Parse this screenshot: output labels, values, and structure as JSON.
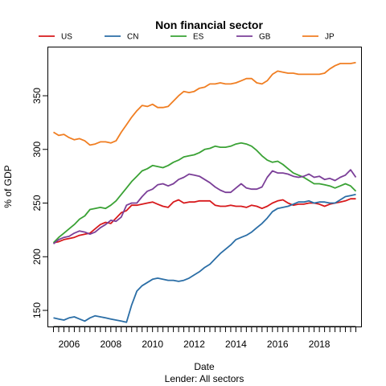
{
  "chart_data": {
    "type": "line",
    "title": "Non financial sector",
    "xlabel": "Date",
    "ylabel": "% of GDP",
    "caption": "Lender: All sectors",
    "xlim": [
      2005.0,
      2020.0
    ],
    "ylim": [
      135,
      395
    ],
    "y_ticks": [
      150,
      200,
      250,
      300,
      350
    ],
    "x_tick_labels": [
      "2006",
      "2008",
      "2010",
      "2012",
      "2014",
      "2016",
      "2018"
    ],
    "x_label_years": [
      2006,
      2008,
      2010,
      2012,
      2014,
      2016,
      2018
    ],
    "legend_position": "top",
    "series": [
      {
        "name": "US",
        "color": "#d7191c",
        "x": [
          2005.25,
          2005.5,
          2005.75,
          2006.0,
          2006.25,
          2006.5,
          2006.75,
          2007.0,
          2007.25,
          2007.5,
          2007.75,
          2008.0,
          2008.25,
          2008.5,
          2008.75,
          2009.0,
          2009.25,
          2009.5,
          2009.75,
          2010.0,
          2010.25,
          2010.5,
          2010.75,
          2011.0,
          2011.25,
          2011.5,
          2011.75,
          2012.0,
          2012.25,
          2012.5,
          2012.75,
          2013.0,
          2013.25,
          2013.5,
          2013.75,
          2014.0,
          2014.25,
          2014.5,
          2014.75,
          2015.0,
          2015.25,
          2015.5,
          2015.75,
          2016.0,
          2016.25,
          2016.5,
          2016.75,
          2017.0,
          2017.25,
          2017.5,
          2017.75,
          2018.0,
          2018.25,
          2018.5,
          2018.75,
          2019.0,
          2019.25,
          2019.5,
          2019.75
        ],
        "values": [
          213,
          214,
          216,
          217,
          218,
          220,
          221,
          222,
          226,
          230,
          232,
          231,
          236,
          241,
          243,
          248,
          248,
          249,
          250,
          251,
          249,
          247,
          246,
          251,
          253,
          250,
          251,
          251,
          252,
          252,
          252,
          248,
          247,
          247,
          248,
          247,
          247,
          246,
          248,
          247,
          245,
          247,
          250,
          252,
          253,
          250,
          248,
          249,
          249,
          250,
          250,
          249,
          247,
          249,
          250,
          251,
          252,
          254,
          254
        ]
      },
      {
        "name": "CN",
        "color": "#2b6ea6",
        "x": [
          2005.25,
          2005.5,
          2005.75,
          2006.0,
          2006.25,
          2006.5,
          2006.75,
          2007.0,
          2007.25,
          2007.5,
          2007.75,
          2008.0,
          2008.25,
          2008.5,
          2008.75,
          2009.0,
          2009.25,
          2009.5,
          2009.75,
          2010.0,
          2010.25,
          2010.5,
          2010.75,
          2011.0,
          2011.25,
          2011.5,
          2011.75,
          2012.0,
          2012.25,
          2012.5,
          2012.75,
          2013.0,
          2013.25,
          2013.5,
          2013.75,
          2014.0,
          2014.25,
          2014.5,
          2014.75,
          2015.0,
          2015.25,
          2015.5,
          2015.75,
          2016.0,
          2016.25,
          2016.5,
          2016.75,
          2017.0,
          2017.25,
          2017.5,
          2017.75,
          2018.0,
          2018.25,
          2018.5,
          2018.75,
          2019.0,
          2019.25,
          2019.5,
          2019.75
        ],
        "values": [
          143,
          142,
          141,
          143,
          144,
          142,
          140,
          143,
          145,
          144,
          143,
          142,
          141,
          140,
          139,
          155,
          168,
          173,
          176,
          179,
          180,
          179,
          178,
          178,
          177,
          178,
          180,
          183,
          186,
          190,
          193,
          198,
          203,
          207,
          211,
          216,
          218,
          220,
          223,
          227,
          231,
          236,
          242,
          245,
          246,
          247,
          249,
          251,
          251,
          252,
          250,
          251,
          251,
          250,
          250,
          253,
          256,
          257,
          258
        ]
      },
      {
        "name": "ES",
        "color": "#3aa235",
        "x": [
          2005.25,
          2005.5,
          2005.75,
          2006.0,
          2006.25,
          2006.5,
          2006.75,
          2007.0,
          2007.25,
          2007.5,
          2007.75,
          2008.0,
          2008.25,
          2008.5,
          2008.75,
          2009.0,
          2009.25,
          2009.5,
          2009.75,
          2010.0,
          2010.25,
          2010.5,
          2010.75,
          2011.0,
          2011.25,
          2011.5,
          2011.75,
          2012.0,
          2012.25,
          2012.5,
          2012.75,
          2013.0,
          2013.25,
          2013.5,
          2013.75,
          2014.0,
          2014.25,
          2014.5,
          2014.75,
          2015.0,
          2015.25,
          2015.5,
          2015.75,
          2016.0,
          2016.25,
          2016.5,
          2016.75,
          2017.0,
          2017.25,
          2017.5,
          2017.75,
          2018.0,
          2018.25,
          2018.5,
          2018.75,
          2019.0,
          2019.25,
          2019.5,
          2019.75
        ],
        "values": [
          213,
          218,
          222,
          226,
          230,
          235,
          238,
          244,
          245,
          246,
          245,
          248,
          252,
          258,
          264,
          270,
          275,
          280,
          282,
          285,
          284,
          283,
          285,
          288,
          290,
          293,
          294,
          295,
          297,
          300,
          301,
          303,
          302,
          302,
          303,
          305,
          306,
          305,
          303,
          299,
          294,
          290,
          288,
          289,
          286,
          282,
          278,
          276,
          274,
          271,
          268,
          268,
          267,
          266,
          264,
          266,
          268,
          266,
          261
        ]
      },
      {
        "name": "GB",
        "color": "#7b3f98",
        "x": [
          2005.25,
          2005.5,
          2005.75,
          2006.0,
          2006.25,
          2006.5,
          2006.75,
          2007.0,
          2007.25,
          2007.5,
          2007.75,
          2008.0,
          2008.25,
          2008.5,
          2008.75,
          2009.0,
          2009.25,
          2009.5,
          2009.75,
          2010.0,
          2010.25,
          2010.5,
          2010.75,
          2011.0,
          2011.25,
          2011.5,
          2011.75,
          2012.0,
          2012.25,
          2012.5,
          2012.75,
          2013.0,
          2013.25,
          2013.5,
          2013.75,
          2014.0,
          2014.25,
          2014.5,
          2014.75,
          2015.0,
          2015.25,
          2015.5,
          2015.75,
          2016.0,
          2016.25,
          2016.5,
          2016.75,
          2017.0,
          2017.25,
          2017.5,
          2017.75,
          2018.0,
          2018.25,
          2018.5,
          2018.75,
          2019.0,
          2019.25,
          2019.5,
          2019.75
        ],
        "values": [
          212,
          216,
          218,
          219,
          222,
          224,
          223,
          221,
          223,
          227,
          230,
          234,
          233,
          237,
          248,
          250,
          250,
          256,
          261,
          263,
          267,
          268,
          266,
          268,
          272,
          274,
          277,
          276,
          275,
          272,
          269,
          265,
          262,
          260,
          260,
          264,
          268,
          264,
          263,
          263,
          265,
          274,
          280,
          278,
          278,
          277,
          275,
          274,
          275,
          277,
          274,
          275,
          272,
          273,
          271,
          274,
          276,
          281,
          274
        ]
      },
      {
        "name": "JP",
        "color": "#f07e22",
        "x": [
          2005.25,
          2005.5,
          2005.75,
          2006.0,
          2006.25,
          2006.5,
          2006.75,
          2007.0,
          2007.25,
          2007.5,
          2007.75,
          2008.0,
          2008.25,
          2008.5,
          2008.75,
          2009.0,
          2009.25,
          2009.5,
          2009.75,
          2010.0,
          2010.25,
          2010.5,
          2010.75,
          2011.0,
          2011.25,
          2011.5,
          2011.75,
          2012.0,
          2012.25,
          2012.5,
          2012.75,
          2013.0,
          2013.25,
          2013.5,
          2013.75,
          2014.0,
          2014.25,
          2014.5,
          2014.75,
          2015.0,
          2015.25,
          2015.5,
          2015.75,
          2016.0,
          2016.25,
          2016.5,
          2016.75,
          2017.0,
          2017.25,
          2017.5,
          2017.75,
          2018.0,
          2018.25,
          2018.5,
          2018.75,
          2019.0,
          2019.25,
          2019.5,
          2019.75
        ],
        "values": [
          316,
          313,
          314,
          311,
          309,
          310,
          308,
          304,
          305,
          307,
          307,
          306,
          308,
          316,
          323,
          330,
          336,
          341,
          340,
          342,
          339,
          339,
          340,
          345,
          350,
          354,
          353,
          354,
          357,
          358,
          361,
          361,
          362,
          361,
          361,
          362,
          364,
          366,
          366,
          362,
          361,
          364,
          370,
          373,
          372,
          371,
          371,
          370,
          370,
          370,
          370,
          370,
          371,
          375,
          378,
          380,
          380,
          380,
          381
        ]
      }
    ]
  }
}
